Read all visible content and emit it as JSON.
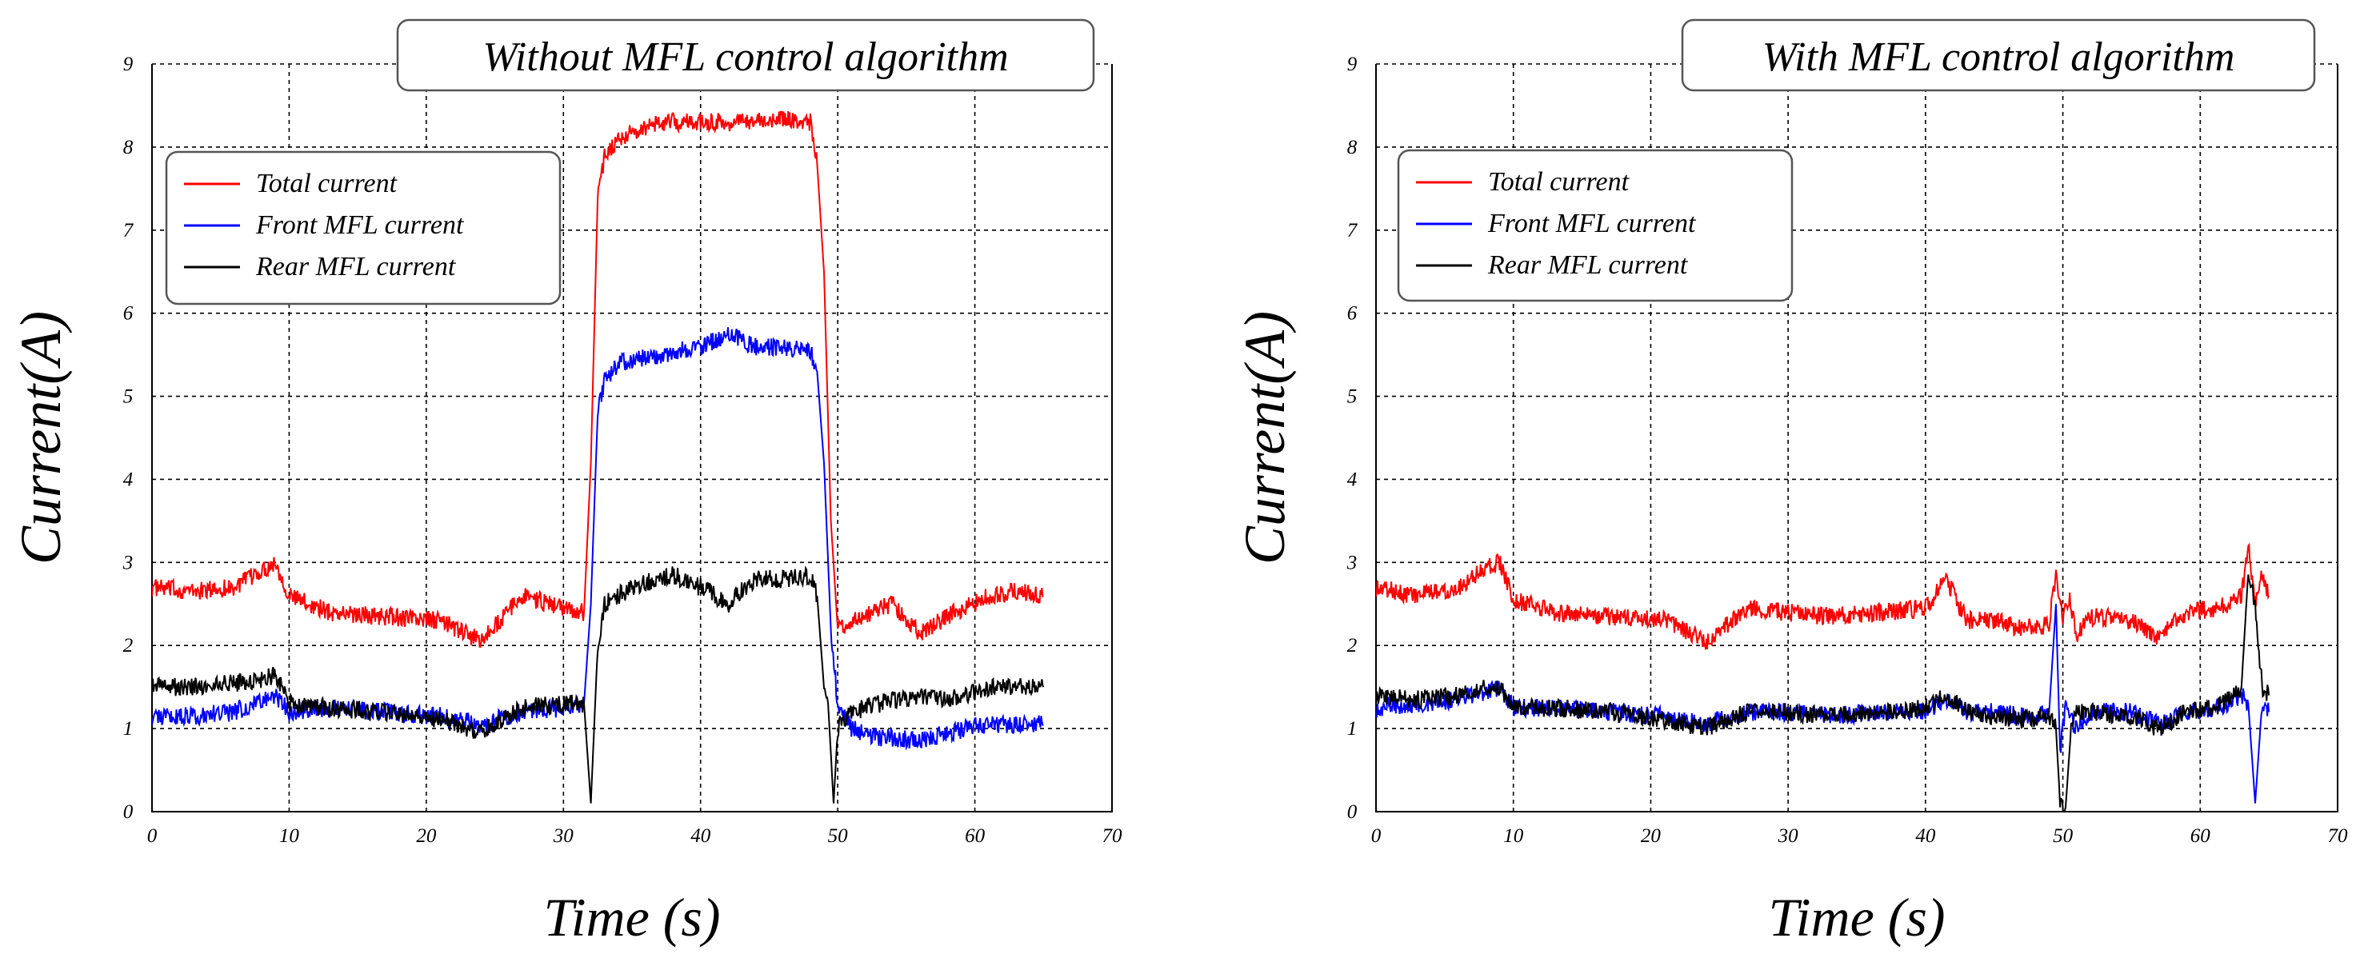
{
  "chart_data": [
    {
      "type": "line",
      "title": "Without MFL control algorithm",
      "xlabel": "Time (s)",
      "ylabel": "Current(A)",
      "xlim": [
        0,
        70
      ],
      "ylim": [
        0,
        9
      ],
      "xticks": [
        "0",
        "10",
        "20",
        "30",
        "40",
        "50",
        "60",
        "70"
      ],
      "yticks": [
        "0",
        "1",
        "2",
        "3",
        "4",
        "5",
        "6",
        "7",
        "8",
        "9"
      ],
      "grid": true,
      "legend_position": "upper-left",
      "series": [
        {
          "name": "Total current",
          "color": "#ff0000",
          "x": [
            0,
            3,
            6,
            8,
            9,
            10,
            13,
            17,
            21,
            24,
            27,
            30,
            31.5,
            32,
            32.5,
            33,
            34,
            37,
            40,
            43,
            46,
            48,
            48.5,
            49,
            49.5,
            50,
            51,
            54,
            56,
            58,
            61,
            63,
            65
          ],
          "y": [
            2.7,
            2.65,
            2.7,
            2.9,
            3.0,
            2.6,
            2.4,
            2.35,
            2.3,
            2.05,
            2.6,
            2.45,
            2.4,
            4.2,
            7.4,
            7.9,
            8.1,
            8.3,
            8.3,
            8.3,
            8.35,
            8.3,
            7.8,
            6.5,
            3.5,
            2.2,
            2.3,
            2.5,
            2.15,
            2.35,
            2.6,
            2.65,
            2.6
          ]
        },
        {
          "name": "Front MFL current",
          "color": "#0000ff",
          "x": [
            0,
            3,
            6,
            8,
            9,
            10,
            13,
            17,
            21,
            24,
            27,
            30,
            31.5,
            32,
            32.5,
            33,
            34,
            37,
            40,
            42,
            44,
            46,
            48,
            48.5,
            49,
            49.5,
            50,
            51,
            53,
            56,
            58,
            61,
            63,
            65
          ],
          "y": [
            1.15,
            1.15,
            1.2,
            1.35,
            1.4,
            1.2,
            1.25,
            1.2,
            1.15,
            1.05,
            1.2,
            1.25,
            1.3,
            2.5,
            4.8,
            5.2,
            5.4,
            5.5,
            5.6,
            5.75,
            5.6,
            5.6,
            5.55,
            5.3,
            4.2,
            2.2,
            1.3,
            1.0,
            0.9,
            0.85,
            0.95,
            1.05,
            1.05,
            1.05
          ]
        },
        {
          "name": "Rear MFL current",
          "color": "#000000",
          "x": [
            0,
            3,
            6,
            8,
            9,
            10,
            13,
            17,
            21,
            24,
            27,
            30,
            31.5,
            32,
            32.5,
            33,
            35,
            38,
            40,
            42,
            44,
            46,
            48,
            48.5,
            49,
            49.3,
            49.7,
            50,
            51,
            53,
            56,
            58,
            61,
            63,
            65
          ],
          "y": [
            1.5,
            1.5,
            1.55,
            1.6,
            1.65,
            1.3,
            1.25,
            1.2,
            1.1,
            0.95,
            1.25,
            1.3,
            1.3,
            0.1,
            2.0,
            2.5,
            2.7,
            2.85,
            2.7,
            2.5,
            2.8,
            2.8,
            2.85,
            2.6,
            1.5,
            1.3,
            0.1,
            1.0,
            1.2,
            1.3,
            1.4,
            1.35,
            1.5,
            1.5,
            1.5
          ]
        }
      ],
      "legend": [
        "Total current",
        "Front MFL current",
        "Rear MFL current"
      ]
    },
    {
      "type": "line",
      "title": "With MFL control algorithm",
      "xlabel": "Time (s)",
      "ylabel": "Current(A)",
      "xlim": [
        0,
        70
      ],
      "ylim": [
        0,
        9
      ],
      "xticks": [
        "0",
        "10",
        "20",
        "30",
        "40",
        "50",
        "60",
        "70"
      ],
      "yticks": [
        "0",
        "1",
        "2",
        "3",
        "4",
        "5",
        "6",
        "7",
        "8",
        "9"
      ],
      "grid": true,
      "legend_position": "upper-left",
      "series": [
        {
          "name": "Total current",
          "color": "#ff0000",
          "x": [
            0,
            3,
            6,
            8,
            9,
            10,
            13,
            17,
            21,
            24,
            27,
            30,
            33,
            37,
            40,
            41.5,
            43,
            45,
            47,
            49,
            49.5,
            50,
            50.5,
            51,
            52,
            55,
            57,
            59,
            61,
            62,
            63,
            63.5,
            64,
            64.5,
            65
          ],
          "y": [
            2.7,
            2.6,
            2.7,
            2.95,
            3.0,
            2.55,
            2.4,
            2.35,
            2.3,
            2.05,
            2.45,
            2.4,
            2.35,
            2.4,
            2.45,
            2.8,
            2.3,
            2.3,
            2.2,
            2.25,
            2.9,
            2.3,
            2.6,
            2.1,
            2.35,
            2.3,
            2.1,
            2.4,
            2.45,
            2.5,
            2.6,
            3.2,
            2.5,
            2.9,
            2.6
          ]
        },
        {
          "name": "Front MFL current",
          "color": "#0000ff",
          "x": [
            0,
            3,
            6,
            8,
            9,
            10,
            13,
            17,
            21,
            24,
            27,
            30,
            33,
            37,
            40,
            41.5,
            43,
            45,
            47,
            49,
            49.5,
            49.8,
            50.2,
            50.6,
            51,
            52,
            55,
            57,
            59,
            61,
            62,
            63,
            63.5,
            64,
            64.5,
            65
          ],
          "y": [
            1.25,
            1.3,
            1.35,
            1.45,
            1.5,
            1.25,
            1.25,
            1.2,
            1.15,
            1.05,
            1.2,
            1.2,
            1.15,
            1.2,
            1.2,
            1.35,
            1.2,
            1.2,
            1.15,
            1.2,
            2.5,
            0.7,
            1.3,
            1.1,
            1.0,
            1.2,
            1.2,
            1.05,
            1.2,
            1.25,
            1.3,
            1.4,
            1.3,
            0.1,
            1.3,
            1.2
          ]
        },
        {
          "name": "Rear MFL current",
          "color": "#000000",
          "x": [
            0,
            3,
            6,
            8,
            9,
            10,
            13,
            17,
            21,
            24,
            27,
            30,
            33,
            37,
            40,
            41.5,
            43,
            45,
            47,
            49,
            49.5,
            49.8,
            50.2,
            50.6,
            51,
            52,
            55,
            57,
            59,
            61,
            62,
            63,
            63.5,
            64,
            64.5,
            65
          ],
          "y": [
            1.4,
            1.35,
            1.4,
            1.5,
            1.5,
            1.25,
            1.25,
            1.2,
            1.1,
            1.0,
            1.2,
            1.2,
            1.15,
            1.2,
            1.25,
            1.4,
            1.2,
            1.15,
            1.1,
            1.15,
            1.0,
            0.1,
            0.05,
            1.0,
            1.2,
            1.2,
            1.15,
            1.0,
            1.2,
            1.25,
            1.35,
            1.5,
            2.9,
            2.5,
            1.5,
            1.4
          ]
        }
      ],
      "legend": [
        "Total current",
        "Front MFL current",
        "Rear MFL current"
      ]
    }
  ]
}
